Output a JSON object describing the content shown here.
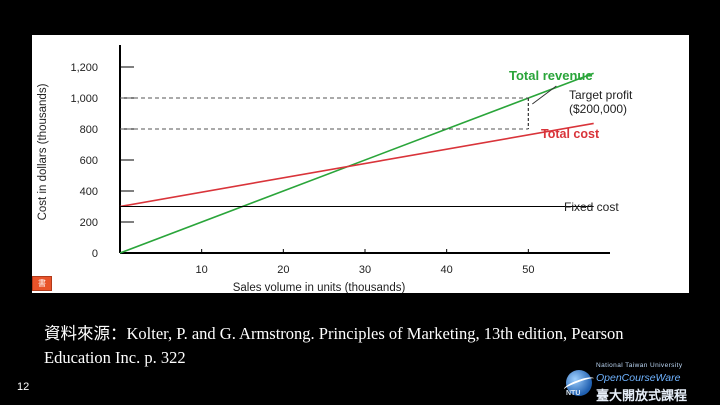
{
  "chart_data": {
    "type": "line",
    "title": "",
    "xlabel": "Sales volume in units (thousands)",
    "ylabel": "Cost in dollars (thousands)",
    "xlim": [
      0,
      60
    ],
    "ylim": [
      0,
      1200
    ],
    "x_ticks": [
      10,
      20,
      30,
      40,
      50
    ],
    "y_ticks": [
      0,
      200,
      400,
      600,
      800,
      1000,
      1200
    ],
    "y_tick_labels": [
      "0",
      "200",
      "400",
      "600",
      "800",
      "1,000",
      "1,200"
    ],
    "series": [
      {
        "name": "Total revenue",
        "color": "#2aa53a",
        "x": [
          0,
          58
        ],
        "y": [
          0,
          1160
        ]
      },
      {
        "name": "Total cost",
        "color": "#d9343a",
        "x": [
          0,
          58
        ],
        "y": [
          300,
          836
        ]
      },
      {
        "name": "Fixed cost",
        "color": "#000000",
        "x": [
          0,
          58
        ],
        "y": [
          300,
          300
        ]
      }
    ],
    "legend_labels": {
      "total_revenue": "Total revenue",
      "total_cost": "Total cost",
      "fixed_cost": "Fixed cost"
    },
    "annotation": {
      "line1": "Target profit",
      "line2": "($200,000)",
      "x": 50,
      "y_low": 800,
      "y_high": 1000
    }
  },
  "book_icon_label": "書",
  "citation": "資料來源：Kolter, P. and G. Armstrong. Principles of Marketing, 13th edition, Pearson Education Inc. p. 322",
  "page_number": "12",
  "logo": {
    "university": "National Taiwan University",
    "name": "OpenCourseWare",
    "abbr": "NTU",
    "chinese": "臺大開放式課程"
  }
}
